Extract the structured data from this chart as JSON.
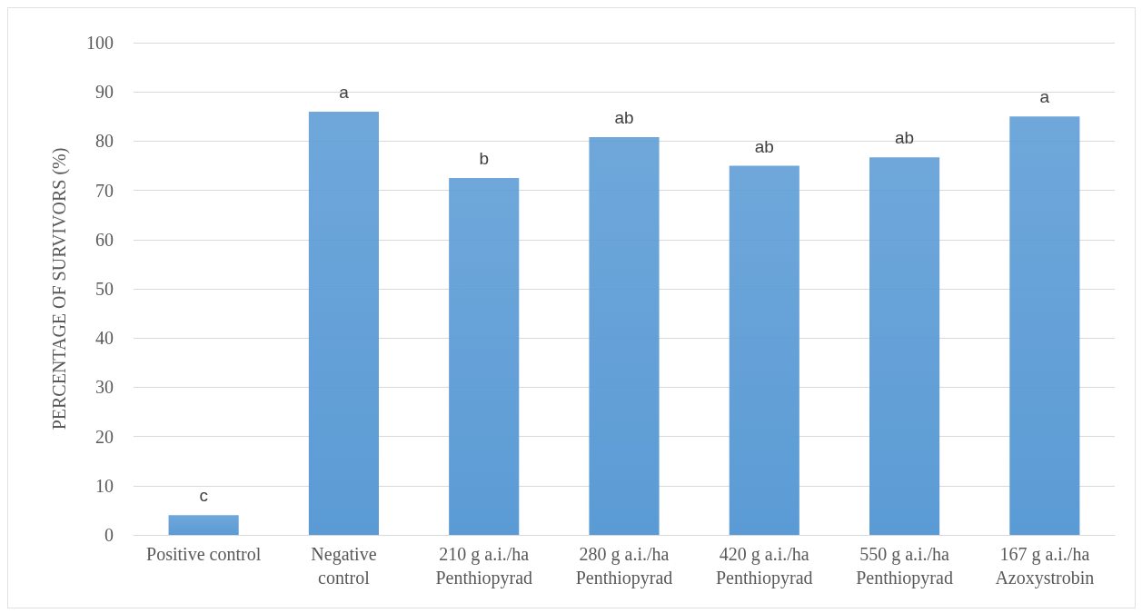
{
  "chart_data": {
    "type": "bar",
    "ylabel": "PERCENTAGE OF SURVIVORS (%)",
    "categories": [
      "Positive control",
      "Negative\ncontrol",
      "210 g a.i./ha\nPenthiopyrad",
      "280 g a.i./ha\nPenthiopyrad",
      "420 g a.i./ha\nPenthiopyrad",
      "550 g a.i./ha\nPenthiopyrad",
      "167 g a.i./ha\nAzoxystrobin"
    ],
    "values": [
      4,
      86,
      72.5,
      80.8,
      75,
      76.7,
      85
    ],
    "color": "#5b9bd5",
    "ylim": [
      0,
      100
    ],
    "yticks": [
      0,
      10,
      20,
      30,
      40,
      50,
      60,
      70,
      80,
      90,
      100
    ],
    "grid": "y",
    "annotations": [
      {
        "text": "c",
        "x": "Positive control",
        "y": 4
      },
      {
        "text": "a",
        "x": "Negative\ncontrol",
        "y": 86
      },
      {
        "text": "b",
        "x": "210 g a.i./ha\nPenthiopyrad",
        "y": 72.5
      },
      {
        "text": "ab",
        "x": "280 g a.i./ha\nPenthiopyrad",
        "y": 80.8
      },
      {
        "text": "ab",
        "x": "420 g a.i./ha\nPenthiopyrad",
        "y": 75
      },
      {
        "text": "ab",
        "x": "550 g a.i./ha\nPenthiopyrad",
        "y": 76.7
      },
      {
        "text": "a",
        "x": "167 g a.i./ha\nAzoxystrobin",
        "y": 85
      }
    ]
  }
}
